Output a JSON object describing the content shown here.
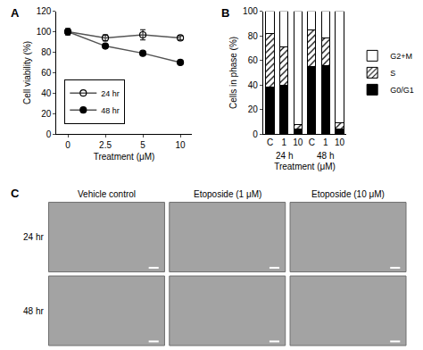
{
  "chart_data": [
    {
      "type": "line",
      "label": "A",
      "categories": [
        "0",
        "2.5",
        "5",
        "10"
      ],
      "series": [
        {
          "name": "24 hr",
          "color": "#555555",
          "marker": "open",
          "values": [
            100,
            94,
            97,
            94
          ],
          "errors": [
            3,
            3,
            5,
            2
          ]
        },
        {
          "name": "48 hr",
          "color": "#555555",
          "marker": "filled",
          "values": [
            100,
            86,
            79,
            70
          ],
          "errors": [
            3,
            1,
            1,
            2
          ]
        }
      ],
      "x_label": "Treatment (μM)",
      "y_label": "Cell viability (%)",
      "ylim": [
        0,
        120
      ],
      "yticks": [
        0,
        20,
        40,
        60,
        80,
        100,
        120
      ],
      "grid": false,
      "legend": "lower left"
    },
    {
      "type": "bar",
      "label": "B",
      "stacked": true,
      "categories": [
        "C",
        "1",
        "10",
        "C",
        "1",
        "10"
      ],
      "group": [
        "24 h",
        "24 h",
        "24 h",
        "48 h",
        "48 h",
        "48 h"
      ],
      "series": [
        {
          "name": "G0/G1",
          "color": "#000000",
          "marker": "solid",
          "values": [
            38,
            40,
            4,
            55,
            56,
            4
          ]
        },
        {
          "name": "S",
          "color": "#ffffff",
          "marker": "hatched",
          "values": [
            44,
            31,
            4,
            30,
            22,
            5
          ]
        },
        {
          "name": "G2+M",
          "color": "#ffffff",
          "marker": "solid",
          "values": [
            18,
            29,
            92,
            15,
            22,
            91
          ]
        }
      ],
      "x_label": "Treatment (μM)",
      "y_label": "Cells in phase (%)",
      "ylim": [
        0,
        100
      ],
      "yticks": [
        0,
        20,
        40,
        60,
        80,
        100
      ],
      "grid": false,
      "legend": "right"
    }
  ],
  "panel_c": {
    "label": "C",
    "columns": [
      "Vehicle control",
      "Etoposide (1 μM)",
      "Etoposide (10 μM)"
    ],
    "rows": [
      "24 hr",
      "48 hr"
    ]
  }
}
